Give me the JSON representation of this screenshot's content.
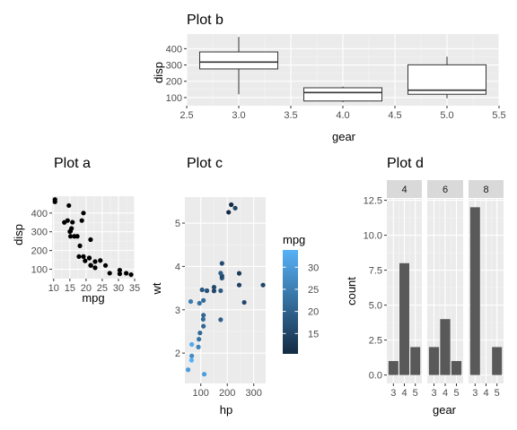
{
  "chart_data": [
    {
      "id": "a",
      "type": "scatter",
      "title": "Plot a",
      "xlabel": "mpg",
      "ylabel": "disp",
      "xlim": [
        9.5,
        35
      ],
      "ylim": [
        50,
        490
      ],
      "xticks": [
        10,
        15,
        20,
        25,
        30,
        35
      ],
      "xtick_labels": [
        "10",
        "15",
        "20",
        "25",
        "30",
        "35"
      ],
      "yticks": [
        100,
        200,
        300,
        400
      ],
      "ytick_labels": [
        "100",
        "200",
        "300",
        "400"
      ],
      "grid": true,
      "point_color": "#000000",
      "points": [
        {
          "x": 21.0,
          "y": 160
        },
        {
          "x": 21.0,
          "y": 160
        },
        {
          "x": 22.8,
          "y": 108
        },
        {
          "x": 21.4,
          "y": 258
        },
        {
          "x": 18.7,
          "y": 360
        },
        {
          "x": 18.1,
          "y": 225
        },
        {
          "x": 14.3,
          "y": 360
        },
        {
          "x": 24.4,
          "y": 146.7
        },
        {
          "x": 22.8,
          "y": 140.8
        },
        {
          "x": 19.2,
          "y": 167.6
        },
        {
          "x": 17.8,
          "y": 167.6
        },
        {
          "x": 16.4,
          "y": 275.8
        },
        {
          "x": 17.3,
          "y": 275.8
        },
        {
          "x": 15.2,
          "y": 275.8
        },
        {
          "x": 10.4,
          "y": 472
        },
        {
          "x": 10.4,
          "y": 460
        },
        {
          "x": 14.7,
          "y": 440
        },
        {
          "x": 32.4,
          "y": 78.7
        },
        {
          "x": 30.4,
          "y": 75.7
        },
        {
          "x": 33.9,
          "y": 71.1
        },
        {
          "x": 21.5,
          "y": 120.1
        },
        {
          "x": 15.5,
          "y": 318
        },
        {
          "x": 15.2,
          "y": 304
        },
        {
          "x": 13.3,
          "y": 350
        },
        {
          "x": 19.2,
          "y": 400
        },
        {
          "x": 27.3,
          "y": 79
        },
        {
          "x": 26.0,
          "y": 120.3
        },
        {
          "x": 30.4,
          "y": 95.1
        },
        {
          "x": 15.8,
          "y": 351
        },
        {
          "x": 19.7,
          "y": 145
        },
        {
          "x": 15.0,
          "y": 301
        },
        {
          "x": 21.4,
          "y": 121
        }
      ]
    },
    {
      "id": "b",
      "type": "box",
      "title": "Plot b",
      "xlabel": "gear",
      "ylabel": "disp",
      "xlim": [
        2.5,
        5.5
      ],
      "ylim": [
        50,
        490
      ],
      "xticks": [
        2.5,
        3.0,
        3.5,
        4.0,
        4.5,
        5.0,
        5.5
      ],
      "xtick_labels": [
        "2.5",
        "3.0",
        "3.5",
        "4.0",
        "4.5",
        "5.0",
        "5.5"
      ],
      "yticks": [
        100,
        200,
        300,
        400
      ],
      "ytick_labels": [
        "100",
        "200",
        "300",
        "400"
      ],
      "grid": true,
      "boxes": [
        {
          "x": 3,
          "min": 120.1,
          "q1": 275.8,
          "median": 318,
          "q3": 380,
          "max": 472
        },
        {
          "x": 4,
          "min": 71.1,
          "q1": 78.9,
          "median": 130.9,
          "q3": 160,
          "max": 167.6
        },
        {
          "x": 5,
          "min": 95.1,
          "q1": 120.3,
          "median": 145,
          "q3": 301,
          "max": 351
        }
      ]
    },
    {
      "id": "c",
      "type": "scatter",
      "title": "Plot c",
      "xlabel": "hp",
      "ylabel": "wt",
      "xlim": [
        40,
        345
      ],
      "ylim": [
        1.3,
        5.6
      ],
      "xticks": [
        100,
        200,
        300
      ],
      "xtick_labels": [
        "100",
        "200",
        "300"
      ],
      "yticks": [
        2,
        3,
        4,
        5
      ],
      "ytick_labels": [
        "2",
        "3",
        "4",
        "5"
      ],
      "grid": true,
      "color_by": "mpg",
      "legend": {
        "title": "mpg",
        "position": "right",
        "type": "colorbar",
        "range": [
          10.4,
          33.9
        ],
        "low_color": "#132B43",
        "high_color": "#56B1F7",
        "breaks": [
          15,
          20,
          25,
          30
        ],
        "break_labels": [
          "15",
          "20",
          "25",
          "30"
        ]
      },
      "points": [
        {
          "x": 110,
          "y": 2.62,
          "mpg": 21.0
        },
        {
          "x": 110,
          "y": 2.875,
          "mpg": 21.0
        },
        {
          "x": 93,
          "y": 2.32,
          "mpg": 22.8
        },
        {
          "x": 110,
          "y": 3.215,
          "mpg": 21.4
        },
        {
          "x": 175,
          "y": 3.44,
          "mpg": 18.7
        },
        {
          "x": 105,
          "y": 3.46,
          "mpg": 18.1
        },
        {
          "x": 245,
          "y": 3.57,
          "mpg": 14.3
        },
        {
          "x": 62,
          "y": 3.19,
          "mpg": 24.4
        },
        {
          "x": 95,
          "y": 3.15,
          "mpg": 22.8
        },
        {
          "x": 123,
          "y": 3.44,
          "mpg": 19.2
        },
        {
          "x": 123,
          "y": 3.44,
          "mpg": 17.8
        },
        {
          "x": 180,
          "y": 4.07,
          "mpg": 16.4
        },
        {
          "x": 180,
          "y": 3.73,
          "mpg": 17.3
        },
        {
          "x": 180,
          "y": 3.78,
          "mpg": 15.2
        },
        {
          "x": 205,
          "y": 5.25,
          "mpg": 10.4
        },
        {
          "x": 215,
          "y": 5.424,
          "mpg": 10.4
        },
        {
          "x": 230,
          "y": 5.345,
          "mpg": 14.7
        },
        {
          "x": 66,
          "y": 2.2,
          "mpg": 32.4
        },
        {
          "x": 52,
          "y": 1.615,
          "mpg": 30.4
        },
        {
          "x": 65,
          "y": 1.835,
          "mpg": 33.9
        },
        {
          "x": 97,
          "y": 2.465,
          "mpg": 21.5
        },
        {
          "x": 150,
          "y": 3.52,
          "mpg": 15.5
        },
        {
          "x": 150,
          "y": 3.435,
          "mpg": 15.2
        },
        {
          "x": 245,
          "y": 3.84,
          "mpg": 13.3
        },
        {
          "x": 175,
          "y": 3.845,
          "mpg": 19.2
        },
        {
          "x": 66,
          "y": 1.935,
          "mpg": 27.3
        },
        {
          "x": 91,
          "y": 2.14,
          "mpg": 26.0
        },
        {
          "x": 113,
          "y": 1.513,
          "mpg": 30.4
        },
        {
          "x": 264,
          "y": 3.17,
          "mpg": 15.8
        },
        {
          "x": 175,
          "y": 2.77,
          "mpg": 19.7
        },
        {
          "x": 335,
          "y": 3.57,
          "mpg": 15.0
        },
        {
          "x": 109,
          "y": 2.78,
          "mpg": 21.4
        }
      ]
    },
    {
      "id": "d",
      "type": "bar",
      "title": "Plot d",
      "xlabel": "gear",
      "ylabel": "count",
      "ylim": [
        -0.6,
        12.6
      ],
      "yticks": [
        0,
        2.5,
        5,
        7.5,
        10,
        12.5
      ],
      "ytick_labels": [
        "0.0",
        "2.5",
        "5.0",
        "7.5",
        "10.0",
        "12.5"
      ],
      "grid": true,
      "bar_color": "#595959",
      "categories": [
        "3",
        "4",
        "5"
      ],
      "facets": [
        {
          "label": "4",
          "values": [
            1,
            8,
            2
          ]
        },
        {
          "label": "6",
          "values": [
            2,
            4,
            1
          ]
        },
        {
          "label": "8",
          "values": [
            12,
            0,
            2
          ]
        }
      ]
    }
  ]
}
